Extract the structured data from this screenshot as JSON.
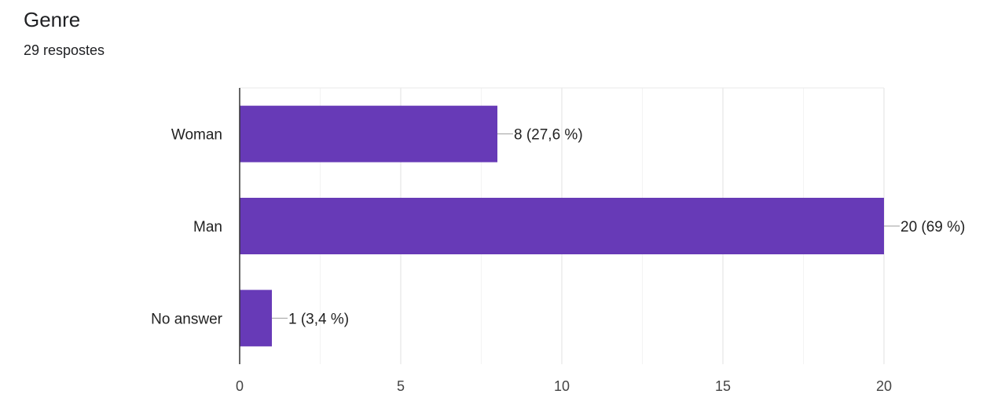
{
  "header": {
    "title": "Genre",
    "subtitle": "29 respostes"
  },
  "chart_data": {
    "type": "bar",
    "orientation": "horizontal",
    "categories": [
      "Woman",
      "Man",
      "No answer"
    ],
    "values": [
      8,
      20,
      1
    ],
    "data_labels": [
      "8 (27,6 %)",
      "20 (69 %)",
      "1 (3,4 %)"
    ],
    "xlim": [
      0,
      20
    ],
    "xticks": [
      0,
      5,
      10,
      15,
      20
    ],
    "grid": true,
    "bar_color": "#673ab7"
  }
}
